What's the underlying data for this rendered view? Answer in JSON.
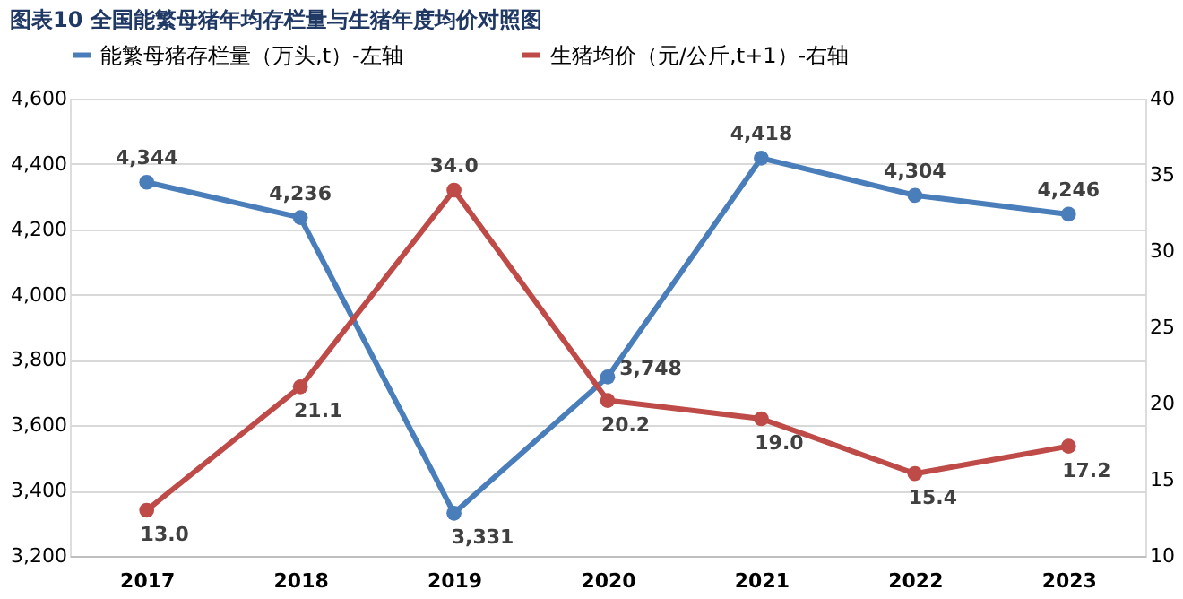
{
  "chart_data": {
    "type": "line",
    "title": "图表10 全国能繁母猪年均存栏量与生猪年度均价对照图",
    "categories": [
      "2017",
      "2018",
      "2019",
      "2020",
      "2021",
      "2022",
      "2023"
    ],
    "series": [
      {
        "name": "能繁母猪存栏量（万头,t）-左轴",
        "color": "#4a7ebb",
        "values": [
          4344,
          4236,
          3331,
          3748,
          4418,
          4304,
          4246
        ],
        "value_labels": [
          "4,344",
          "4,236",
          "3,331",
          "3,748",
          "4,418",
          "4,304",
          "4,246"
        ]
      },
      {
        "name": "生猪均价（元/公斤,t+1）-右轴",
        "color": "#be4b48",
        "axis": "y2",
        "values": [
          13.0,
          21.1,
          34.0,
          20.2,
          19.0,
          15.4,
          17.2
        ],
        "value_labels": [
          "13.0",
          "21.1",
          "34.0",
          "20.2",
          "19.0",
          "15.4",
          "17.2"
        ]
      }
    ],
    "ylim": [
      3200,
      4600
    ],
    "yticks": [
      {
        "value": 3200,
        "label": "3,200"
      },
      {
        "value": 3400,
        "label": "3,400"
      },
      {
        "value": 3600,
        "label": "3,600"
      },
      {
        "value": 3800,
        "label": "3,800"
      },
      {
        "value": 4000,
        "label": "4,000"
      },
      {
        "value": 4200,
        "label": "4,200"
      },
      {
        "value": 4400,
        "label": "4,400"
      },
      {
        "value": 4600,
        "label": "4,600"
      }
    ],
    "y2lim": [
      10,
      40
    ],
    "y2ticks": [
      10,
      15,
      20,
      25,
      30,
      35,
      40
    ],
    "grid": "y",
    "legend": "top",
    "marker": "circle",
    "line_style": "solid"
  }
}
